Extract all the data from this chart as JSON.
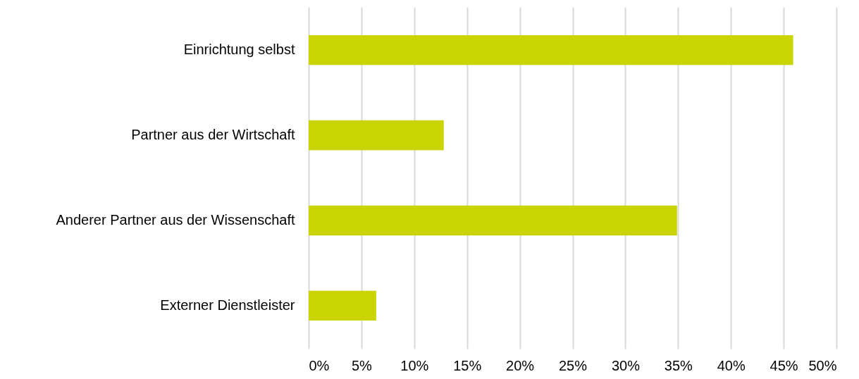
{
  "chart_data": {
    "type": "bar",
    "orientation": "horizontal",
    "categories": [
      "Einrichtung selbst",
      "Partner aus der Wirtschaft",
      "Anderer Partner aus der Wissenschaft",
      "Externer Dienstleister"
    ],
    "values": [
      45.9,
      12.8,
      34.9,
      6.4
    ],
    "color": "#c9d400",
    "xlim": [
      0,
      50
    ],
    "xticks": [
      {
        "value": 0,
        "label": "0%"
      },
      {
        "value": 5,
        "label": "5%"
      },
      {
        "value": 10,
        "label": "10%"
      },
      {
        "value": 15,
        "label": "15%"
      },
      {
        "value": 20,
        "label": "20%"
      },
      {
        "value": 25,
        "label": "25%"
      },
      {
        "value": 30,
        "label": "30%"
      },
      {
        "value": 35,
        "label": "35%"
      },
      {
        "value": 40,
        "label": "40%"
      },
      {
        "value": 45,
        "label": "45%"
      },
      {
        "value": 50,
        "label": "50%"
      }
    ],
    "grid": "x"
  }
}
